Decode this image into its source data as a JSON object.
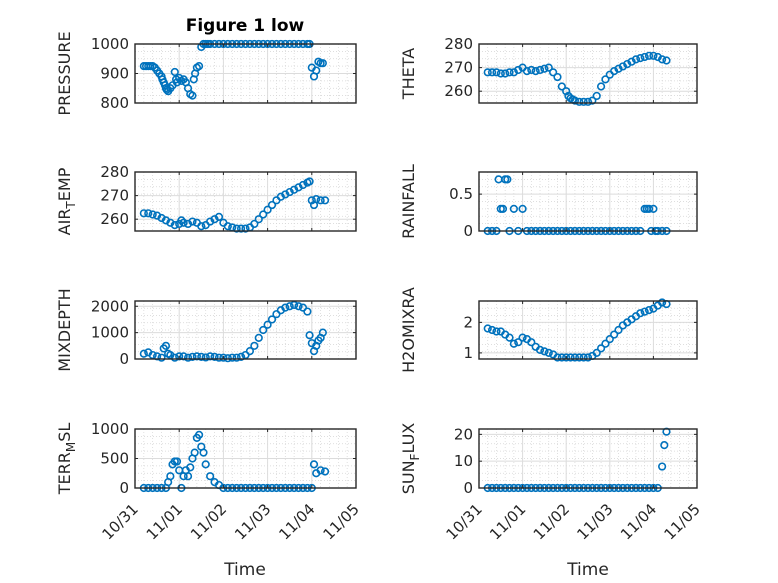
{
  "figure": {
    "title": "Figure 1 low",
    "xlabel": "Time",
    "x_tick_labels": [
      "10/31",
      "11/01",
      "11/02",
      "11/03",
      "11/04",
      "11/05"
    ],
    "marker_color": "#0072BD",
    "marker": "open-circle"
  },
  "chart_data": [
    {
      "type": "scatter",
      "title": "Figure 1 low",
      "ylabel": "PRESSURE",
      "xlim": [
        0,
        5
      ],
      "ylim": [
        800,
        1000
      ],
      "yticks": [
        800,
        900,
        1000
      ],
      "grid": true,
      "series": [
        {
          "x": [
            0.2,
            0.25,
            0.3,
            0.35,
            0.4,
            0.45,
            0.5,
            0.55,
            0.6,
            0.62,
            0.65,
            0.68,
            0.7,
            0.72,
            0.75,
            0.8,
            0.85,
            0.9,
            0.93,
            0.95,
            1.0,
            1.05,
            1.1,
            1.15,
            1.2,
            1.25,
            1.3,
            1.33,
            1.36,
            1.4,
            1.45,
            1.5,
            1.55,
            1.6,
            1.65,
            1.7,
            1.8,
            1.9,
            2.0,
            2.1,
            2.2,
            2.3,
            2.4,
            2.5,
            2.6,
            2.7,
            2.8,
            2.9,
            3.0,
            3.1,
            3.2,
            3.3,
            3.4,
            3.5,
            3.6,
            3.7,
            3.8,
            3.9,
            3.95,
            4.0,
            4.05,
            4.1,
            4.15,
            4.2,
            4.25
          ],
          "y": [
            925,
            925,
            925,
            925,
            925,
            920,
            910,
            900,
            890,
            880,
            870,
            860,
            850,
            845,
            840,
            850,
            860,
            905,
            880,
            870,
            885,
            875,
            880,
            870,
            850,
            830,
            825,
            880,
            900,
            920,
            925,
            990,
            1000,
            1000,
            1000,
            1000,
            1000,
            1000,
            1000,
            1000,
            1000,
            1000,
            1000,
            1000,
            1000,
            1000,
            1000,
            1000,
            1000,
            1000,
            1000,
            1000,
            1000,
            1000,
            1000,
            1000,
            1000,
            1000,
            1000,
            920,
            890,
            910,
            940,
            935,
            935
          ]
        }
      ]
    },
    {
      "type": "scatter",
      "ylabel": "THETA",
      "xlim": [
        0,
        5
      ],
      "ylim": [
        255,
        280
      ],
      "yticks": [
        260,
        270,
        280
      ],
      "grid": true,
      "series": [
        {
          "x": [
            0.2,
            0.3,
            0.4,
            0.5,
            0.6,
            0.7,
            0.8,
            0.9,
            1.0,
            1.1,
            1.2,
            1.3,
            1.4,
            1.5,
            1.6,
            1.7,
            1.8,
            1.9,
            2.0,
            2.05,
            2.1,
            2.15,
            2.2,
            2.3,
            2.4,
            2.5,
            2.6,
            2.7,
            2.8,
            2.9,
            3.0,
            3.1,
            3.2,
            3.3,
            3.4,
            3.5,
            3.6,
            3.7,
            3.8,
            3.9,
            4.0,
            4.1,
            4.2,
            4.3
          ],
          "y": [
            268,
            268,
            268,
            267.5,
            267.5,
            268,
            268,
            269,
            270,
            268.5,
            269,
            268.5,
            269,
            269.5,
            270,
            268,
            266,
            262,
            260,
            258,
            257,
            256.5,
            256,
            255.5,
            255.5,
            255.5,
            256,
            258,
            262,
            265,
            267,
            268.5,
            269.5,
            270.5,
            271.5,
            272.5,
            273.5,
            274,
            274.5,
            275,
            275,
            274.5,
            273.5,
            273
          ]
        }
      ]
    },
    {
      "type": "scatter",
      "ylabel": "AIR_TEMP",
      "ylabel_display": [
        "AIR",
        "T",
        "EMP"
      ],
      "xlim": [
        0,
        5
      ],
      "ylim": [
        255,
        280
      ],
      "yticks": [
        260,
        270,
        280
      ],
      "grid": true,
      "series": [
        {
          "x": [
            0.2,
            0.3,
            0.4,
            0.5,
            0.6,
            0.7,
            0.8,
            0.9,
            1.0,
            1.05,
            1.1,
            1.2,
            1.3,
            1.4,
            1.5,
            1.6,
            1.7,
            1.8,
            1.9,
            2.0,
            2.1,
            2.2,
            2.3,
            2.4,
            2.5,
            2.6,
            2.7,
            2.8,
            2.9,
            3.0,
            3.1,
            3.2,
            3.3,
            3.4,
            3.5,
            3.6,
            3.7,
            3.8,
            3.9,
            3.95,
            4.0,
            4.05,
            4.1,
            4.2,
            4.3
          ],
          "y": [
            262.5,
            262.5,
            262,
            261.5,
            260.5,
            259.5,
            258.5,
            257.5,
            258,
            259.5,
            258.5,
            258,
            259,
            258.5,
            257,
            257.5,
            259,
            260,
            261,
            258.5,
            257,
            256.5,
            256,
            256,
            256,
            256.5,
            258,
            260,
            262,
            264,
            266,
            268,
            269.5,
            270.5,
            271.5,
            272.5,
            273.5,
            274.5,
            275.5,
            276,
            268,
            266,
            268.5,
            268,
            268
          ]
        }
      ]
    },
    {
      "type": "scatter",
      "ylabel": "RAINFALL",
      "xlim": [
        0,
        5
      ],
      "ylim": [
        0,
        0.8
      ],
      "yticks": [
        0,
        0.5
      ],
      "grid": true,
      "series": [
        {
          "x": [
            0.2,
            0.3,
            0.4,
            0.45,
            0.5,
            0.55,
            0.6,
            0.65,
            0.7,
            0.8,
            0.9,
            1.0,
            1.1,
            1.2,
            1.3,
            1.4,
            1.5,
            1.6,
            1.7,
            1.8,
            1.9,
            2.0,
            2.1,
            2.2,
            2.3,
            2.4,
            2.5,
            2.6,
            2.7,
            2.8,
            2.9,
            3.0,
            3.1,
            3.2,
            3.3,
            3.4,
            3.5,
            3.6,
            3.7,
            3.8,
            3.85,
            3.9,
            3.95,
            4.0,
            4.05,
            4.1,
            4.2,
            4.3
          ],
          "y": [
            0,
            0,
            0,
            0.7,
            0.3,
            0.3,
            0.7,
            0.7,
            0,
            0.3,
            0,
            0.3,
            0,
            0,
            0,
            0,
            0,
            0,
            0,
            0,
            0,
            0,
            0,
            0,
            0,
            0,
            0,
            0,
            0,
            0,
            0,
            0,
            0,
            0,
            0,
            0,
            0,
            0,
            0,
            0.3,
            0.3,
            0.3,
            0,
            0.3,
            0,
            0,
            0,
            0
          ]
        }
      ]
    },
    {
      "type": "scatter",
      "ylabel": "MIXDEPTH",
      "xlim": [
        0,
        5
      ],
      "ylim": [
        0,
        2200
      ],
      "yticks": [
        0,
        1000,
        2000
      ],
      "grid": true,
      "series": [
        {
          "x": [
            0.2,
            0.3,
            0.4,
            0.5,
            0.6,
            0.65,
            0.7,
            0.75,
            0.8,
            0.9,
            1.0,
            1.1,
            1.2,
            1.3,
            1.4,
            1.5,
            1.6,
            1.7,
            1.8,
            1.9,
            2.0,
            2.1,
            2.2,
            2.3,
            2.4,
            2.5,
            2.6,
            2.7,
            2.8,
            2.9,
            3.0,
            3.1,
            3.2,
            3.3,
            3.4,
            3.5,
            3.6,
            3.7,
            3.8,
            3.9,
            3.95,
            4.0,
            4.05,
            4.1,
            4.15,
            4.2,
            4.25
          ],
          "y": [
            200,
            250,
            150,
            100,
            50,
            400,
            500,
            200,
            150,
            50,
            100,
            100,
            50,
            80,
            100,
            80,
            60,
            100,
            80,
            50,
            50,
            30,
            50,
            50,
            80,
            150,
            300,
            500,
            800,
            1100,
            1300,
            1500,
            1700,
            1850,
            1950,
            2000,
            2050,
            2000,
            1950,
            1800,
            900,
            600,
            300,
            500,
            700,
            800,
            1000
          ]
        }
      ]
    },
    {
      "type": "scatter",
      "ylabel": "H2OMIXRA",
      "xlim": [
        0,
        5
      ],
      "ylim": [
        0.8,
        2.7
      ],
      "yticks": [
        1,
        2
      ],
      "grid": true,
      "series": [
        {
          "x": [
            0.2,
            0.3,
            0.4,
            0.5,
            0.6,
            0.7,
            0.8,
            0.9,
            1.0,
            1.1,
            1.2,
            1.3,
            1.4,
            1.5,
            1.6,
            1.7,
            1.8,
            1.9,
            2.0,
            2.1,
            2.2,
            2.3,
            2.4,
            2.5,
            2.6,
            2.7,
            2.8,
            2.9,
            3.0,
            3.1,
            3.2,
            3.3,
            3.4,
            3.5,
            3.6,
            3.7,
            3.8,
            3.9,
            4.0,
            4.1,
            4.2,
            4.3
          ],
          "y": [
            1.8,
            1.75,
            1.7,
            1.7,
            1.6,
            1.5,
            1.3,
            1.35,
            1.5,
            1.45,
            1.35,
            1.2,
            1.1,
            1.05,
            1.0,
            0.95,
            0.85,
            0.85,
            0.85,
            0.85,
            0.85,
            0.85,
            0.85,
            0.85,
            0.9,
            1.0,
            1.15,
            1.3,
            1.45,
            1.6,
            1.75,
            1.9,
            2.0,
            2.1,
            2.2,
            2.3,
            2.35,
            2.4,
            2.45,
            2.55,
            2.65,
            2.6
          ]
        }
      ]
    },
    {
      "type": "scatter",
      "ylabel": "TERR_MSL",
      "ylabel_display": [
        "TERR",
        "M",
        "SL"
      ],
      "xlim": [
        0,
        5
      ],
      "ylim": [
        0,
        1000
      ],
      "yticks": [
        0,
        500,
        1000
      ],
      "grid": true,
      "series": [
        {
          "x": [
            0.2,
            0.3,
            0.4,
            0.5,
            0.6,
            0.7,
            0.75,
            0.8,
            0.85,
            0.9,
            0.95,
            1.0,
            1.05,
            1.1,
            1.15,
            1.2,
            1.25,
            1.3,
            1.35,
            1.4,
            1.45,
            1.5,
            1.55,
            1.6,
            1.7,
            1.8,
            1.9,
            2.0,
            2.1,
            2.2,
            2.3,
            2.4,
            2.5,
            2.6,
            2.7,
            2.8,
            2.9,
            3.0,
            3.1,
            3.2,
            3.3,
            3.4,
            3.5,
            3.6,
            3.7,
            3.8,
            3.9,
            4.0,
            4.05,
            4.1,
            4.2,
            4.3
          ],
          "y": [
            0,
            0,
            0,
            0,
            0,
            0,
            100,
            200,
            400,
            450,
            450,
            300,
            0,
            200,
            300,
            200,
            350,
            500,
            600,
            850,
            900,
            700,
            600,
            400,
            200,
            100,
            50,
            0,
            0,
            0,
            0,
            0,
            0,
            0,
            0,
            0,
            0,
            0,
            0,
            0,
            0,
            0,
            0,
            0,
            0,
            0,
            0,
            0,
            400,
            250,
            300,
            280
          ]
        }
      ]
    },
    {
      "type": "scatter",
      "ylabel": "SUN_FLUX",
      "ylabel_display": [
        "SUN",
        "F",
        "LUX"
      ],
      "xlim": [
        0,
        5
      ],
      "ylim": [
        0,
        22
      ],
      "yticks": [
        0,
        10,
        20
      ],
      "grid": true,
      "series": [
        {
          "x": [
            0.2,
            0.3,
            0.4,
            0.5,
            0.6,
            0.7,
            0.8,
            0.9,
            1.0,
            1.1,
            1.2,
            1.3,
            1.4,
            1.5,
            1.6,
            1.7,
            1.8,
            1.9,
            2.0,
            2.1,
            2.2,
            2.3,
            2.4,
            2.5,
            2.6,
            2.7,
            2.8,
            2.9,
            3.0,
            3.1,
            3.2,
            3.3,
            3.4,
            3.5,
            3.6,
            3.7,
            3.8,
            3.9,
            4.0,
            4.1,
            4.2,
            4.25,
            4.3
          ],
          "y": [
            0,
            0,
            0,
            0,
            0,
            0,
            0,
            0,
            0,
            0,
            0,
            0,
            0,
            0,
            0,
            0,
            0,
            0,
            0,
            0,
            0,
            0,
            0,
            0,
            0,
            0,
            0,
            0,
            0,
            0,
            0,
            0,
            0,
            0,
            0,
            0,
            0,
            0,
            0,
            0,
            8,
            16,
            21
          ]
        }
      ]
    }
  ]
}
